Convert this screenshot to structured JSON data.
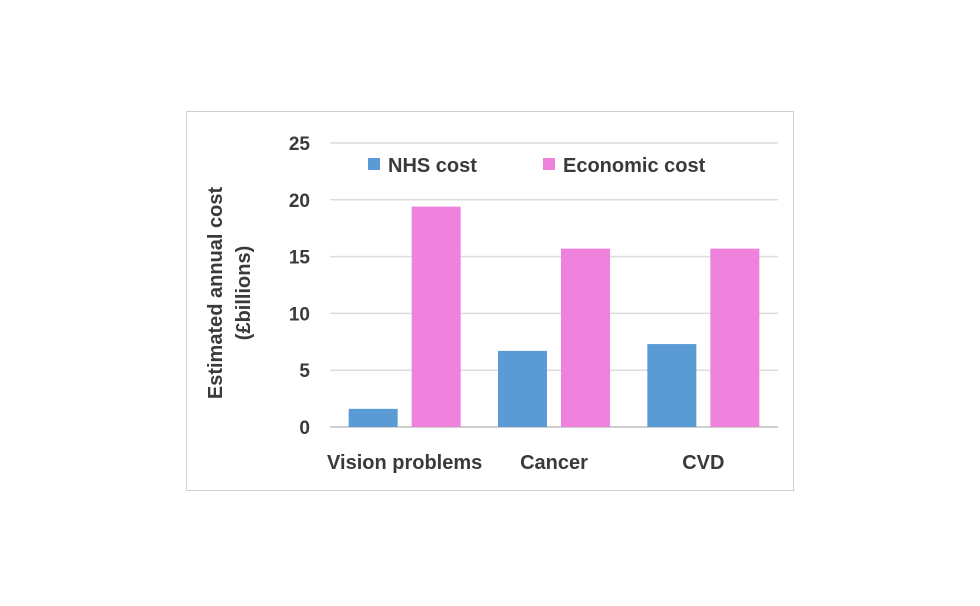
{
  "chart_data": {
    "type": "bar",
    "title": "",
    "xlabel": "",
    "ylabel_lines": [
      "Estimated annual cost",
      "(£billions)"
    ],
    "categories": [
      "Vision problems",
      "Cancer",
      "CVD"
    ],
    "series": [
      {
        "name": "NHS cost",
        "color": "#5b9bd5",
        "values": [
          1.6,
          6.7,
          7.3
        ]
      },
      {
        "name": "Economic cost",
        "color": "#ee82dc",
        "values": [
          19.4,
          15.7,
          15.7
        ]
      }
    ],
    "ylim": [
      0,
      25
    ],
    "yticks": [
      0,
      5,
      10,
      15,
      20,
      25
    ],
    "grid": true,
    "legend_position": "top"
  }
}
